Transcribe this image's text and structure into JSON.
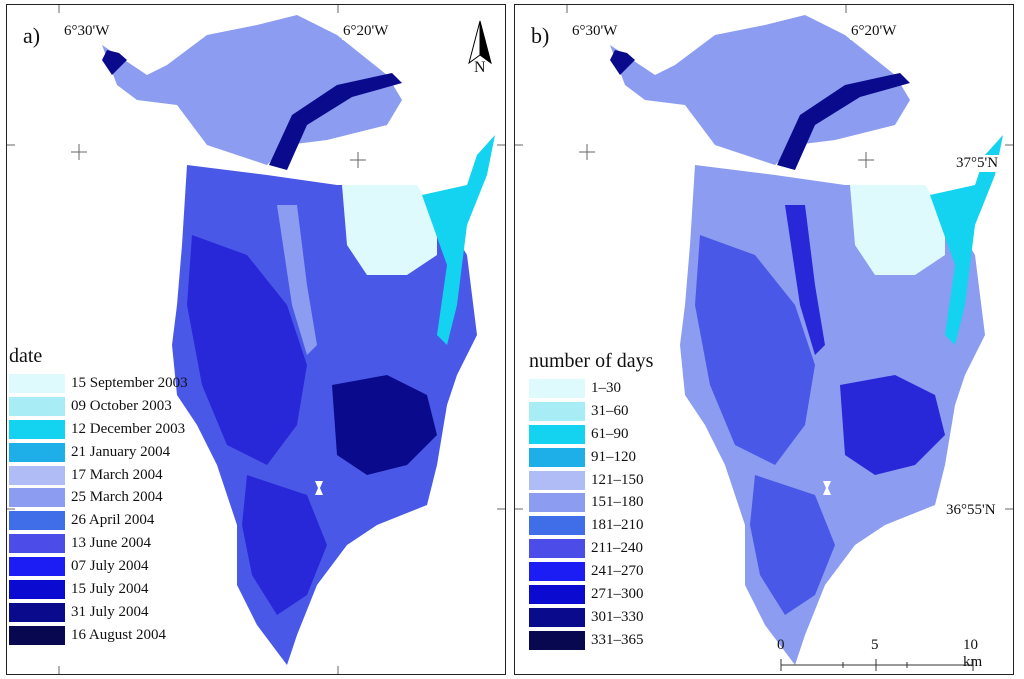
{
  "panel_a": {
    "label": "a)",
    "coords": {
      "lon_left": "6°30'W",
      "lon_right": "6°20'W"
    },
    "north_label": "N",
    "legend": {
      "title": "date",
      "items": [
        {
          "label": "15 September 2003",
          "color": "#dffafd"
        },
        {
          "label": "09 October 2003",
          "color": "#a8ecf5"
        },
        {
          "label": "12 December 2003",
          "color": "#14d3f0"
        },
        {
          "label": "21 January 2004",
          "color": "#1eaee8"
        },
        {
          "label": "17 March 2004",
          "color": "#b0bcf6"
        },
        {
          "label": "25 March 2004",
          "color": "#8c9cf0"
        },
        {
          "label": "26 April 2004",
          "color": "#3f6ee8"
        },
        {
          "label": "13 June 2004",
          "color": "#4c4ce8"
        },
        {
          "label": "07 July 2004",
          "color": "#1c1cf5"
        },
        {
          "label": "15 July 2004",
          "color": "#0a0ad0"
        },
        {
          "label": "31 July 2004",
          "color": "#0a0a8c"
        },
        {
          "label": "16 August 2004",
          "color": "#080850"
        }
      ]
    }
  },
  "panel_b": {
    "label": "b)",
    "coords": {
      "lon_left": "6°30'W",
      "lon_right": "6°20'W",
      "lat_top": "37°5'N",
      "lat_bottom": "36°55'N"
    },
    "legend": {
      "title": "number of days",
      "items": [
        {
          "label": "1–30",
          "color": "#dffafd"
        },
        {
          "label": "31–60",
          "color": "#a8ecf5"
        },
        {
          "label": "61–90",
          "color": "#14d3f0"
        },
        {
          "label": "91–120",
          "color": "#1eaee8"
        },
        {
          "label": "121–150",
          "color": "#b0bcf6"
        },
        {
          "label": "151–180",
          "color": "#8c9cf0"
        },
        {
          "label": "181–210",
          "color": "#3f6ee8"
        },
        {
          "label": "211–240",
          "color": "#4c4ce8"
        },
        {
          "label": "241–270",
          "color": "#1c1cf5"
        },
        {
          "label": "271–300",
          "color": "#0a0ad0"
        },
        {
          "label": "301–330",
          "color": "#0a0a8c"
        },
        {
          "label": "331–365",
          "color": "#080850"
        }
      ]
    },
    "scale": {
      "labels": [
        "0",
        "5",
        "10 km"
      ]
    }
  },
  "map_colors": {
    "base": "#4a58e8",
    "light": "#8c9cf0",
    "pale": "#dffafd",
    "cyan": "#14d3f0",
    "dark": "#0a0a8c",
    "deep": "#2828d8"
  }
}
